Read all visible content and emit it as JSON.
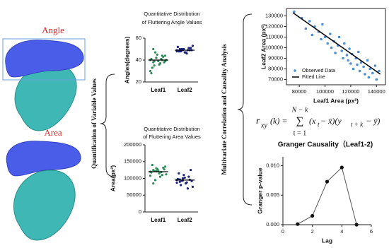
{
  "figure": {
    "angle": "Angle",
    "area": "Area",
    "left_brace": "Quantification of Variable Values",
    "right_brace": "Multivariate Correlation and Causality Analysis",
    "formula": {
      "lhs": "r",
      "lhs_sub": "xy",
      "lhs_arg": "(k) =",
      "upper": "N − k",
      "sum": "∑",
      "lower": "t = 1",
      "term1": "(x",
      "sub1": "t",
      "term2": " − x̄)(y",
      "sub2": "t + k",
      "term3": " − ȳ)"
    }
  },
  "chart_data": [
    {
      "type": "strip",
      "title": [
        "Quantitative Distribution",
        "of Fluttering Angle Values"
      ],
      "y_label": "Angles(degrees)",
      "categories": [
        "Leaf1",
        "Leaf2"
      ],
      "colors": [
        "#2e8b57",
        "#1a237e"
      ],
      "values": [
        [
          40,
          38,
          42,
          36,
          44,
          39,
          41,
          35,
          45,
          37,
          43,
          40,
          33,
          47,
          39,
          41,
          38,
          30,
          50,
          42,
          36,
          40,
          44,
          28,
          39
        ],
        [
          49,
          48,
          50,
          47,
          51,
          49,
          52,
          48,
          50,
          46,
          49,
          53,
          48,
          50,
          47,
          49,
          51,
          48,
          50,
          49
        ]
      ],
      "medians": [
        40,
        49
      ],
      "ylim": [
        20,
        60
      ],
      "yticks": [
        20,
        40,
        60
      ]
    },
    {
      "type": "strip",
      "title": [
        "Quantitative Distribution",
        "of Fluttering Area Values"
      ],
      "y_label": "Area(px²)",
      "categories": [
        "Leaf1",
        "Leaf2"
      ],
      "colors": [
        "#2e8b57",
        "#1a237e"
      ],
      "values": [
        [
          120000,
          125000,
          130000,
          115000,
          110000,
          135000,
          118000,
          122000,
          128000,
          105000,
          132000,
          112000,
          140000,
          95000,
          124000,
          119000,
          127000,
          108000,
          85000,
          121000
        ],
        [
          95000,
          90000,
          100000,
          85000,
          105000,
          92000,
          98000,
          80000,
          110000,
          88000,
          96000,
          75000,
          115000,
          93000,
          102000,
          70000,
          125000,
          87000,
          97000,
          94000
        ]
      ],
      "medians": [
        120000,
        95000
      ],
      "ylim": [
        0,
        200000
      ],
      "yticks": [
        0,
        50000,
        100000,
        150000,
        200000
      ]
    },
    {
      "type": "scatter",
      "x_label": "Leaf1 Area (px²)",
      "y_label": "Leaf2 Area (px²)",
      "series": [
        {
          "name": "Observed Data",
          "color": "#4a90d9",
          "x": [
            76000,
            82000,
            85000,
            88000,
            90000,
            92000,
            95000,
            97000,
            98000,
            100000,
            102000,
            104000,
            105000,
            107000,
            108000,
            110000,
            111000,
            113000,
            114000,
            115000,
            117000,
            118000,
            119000,
            120000,
            121000,
            122000,
            124000,
            125000,
            126000,
            127000,
            128000,
            130000,
            131000,
            133000,
            134000,
            135000,
            137000,
            139000,
            140000,
            142000
          ],
          "y": [
            134000,
            128000,
            118000,
            125000,
            112000,
            120000,
            115000,
            108000,
            122000,
            110000,
            104000,
            113000,
            100000,
            106000,
            95000,
            102000,
            110000,
            97000,
            90000,
            104000,
            93000,
            88000,
            99000,
            85000,
            94000,
            80000,
            90000,
            84000,
            96000,
            78000,
            86000,
            82000,
            75000,
            88000,
            72000,
            80000,
            76000,
            83000,
            70000,
            78000
          ]
        }
      ],
      "fit": {
        "name": "Fitted Line",
        "color": "#000000",
        "x": [
          75000,
          143000
        ],
        "y": [
          133000,
          75000
        ]
      },
      "xlim": [
        70000,
        147000
      ],
      "xticks": [
        80000,
        100000,
        120000,
        140000
      ],
      "ylim": [
        65000,
        137000
      ],
      "yticks": [
        70000,
        80000,
        90000,
        100000,
        110000,
        120000,
        130000
      ],
      "legend": "lower-left"
    },
    {
      "type": "line",
      "title": "Granger Causality（Leaf1-2)",
      "x_label": "Lag",
      "y_label": "Granger p-value",
      "x": [
        1,
        2,
        3,
        4,
        5
      ],
      "values": [
        0.0001,
        0.0015,
        0.0073,
        0.0097,
        0.0
      ],
      "color": "#555555",
      "xlim": [
        0,
        6
      ],
      "xticks": [
        0,
        2,
        4,
        6
      ],
      "ylim": [
        0,
        0.0115
      ],
      "yticks": [
        {
          "value": 0,
          "label": "0.000"
        },
        {
          "value": 0.005,
          "label": "0.005"
        },
        {
          "value": 0.01,
          "label": "0.010"
        }
      ]
    }
  ]
}
